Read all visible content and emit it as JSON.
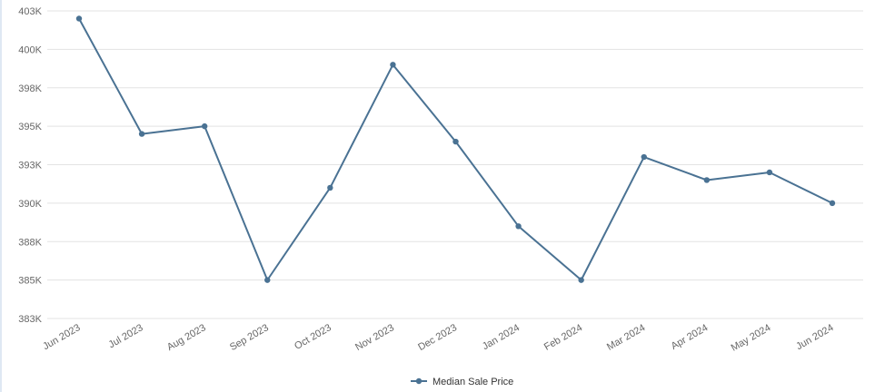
{
  "colors": {
    "series": "#4a7293",
    "grid": "#e3e3e3",
    "tick_text": "#666666"
  },
  "chart_data": {
    "type": "line",
    "title": "",
    "xlabel": "",
    "ylabel": "",
    "categories": [
      "Jun 2023",
      "Jul 2023",
      "Aug 2023",
      "Sep 2023",
      "Oct 2023",
      "Nov 2023",
      "Dec 2023",
      "Jan 2024",
      "Feb 2024",
      "Mar 2024",
      "Apr 2024",
      "May 2024",
      "Jun 2024"
    ],
    "y_ticks": [
      {
        "value": 382500,
        "label": "383K"
      },
      {
        "value": 385000,
        "label": "385K"
      },
      {
        "value": 387500,
        "label": "388K"
      },
      {
        "value": 390000,
        "label": "390K"
      },
      {
        "value": 392500,
        "label": "393K"
      },
      {
        "value": 395000,
        "label": "395K"
      },
      {
        "value": 397500,
        "label": "398K"
      },
      {
        "value": 400000,
        "label": "400K"
      },
      {
        "value": 402500,
        "label": "403K"
      }
    ],
    "ylim": [
      382500,
      402500
    ],
    "grid": true,
    "legend_position": "bottom-center",
    "series": [
      {
        "name": "Median Sale Price",
        "values": [
          402000,
          394500,
          395000,
          385000,
          391000,
          399000,
          394000,
          388500,
          385000,
          393000,
          391500,
          392000,
          390000
        ]
      }
    ]
  }
}
